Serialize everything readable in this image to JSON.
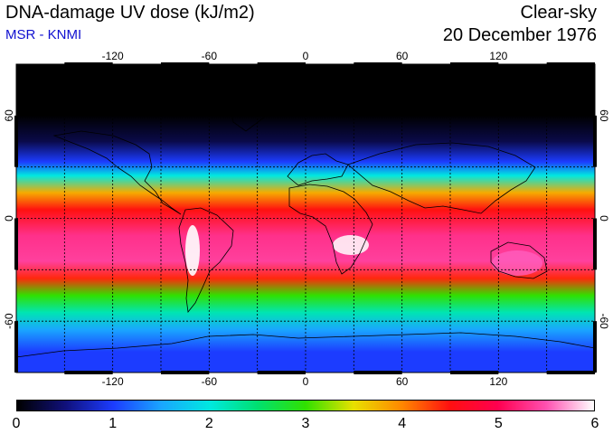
{
  "header": {
    "title": "DNA-damage UV dose (kJ/m2)",
    "subtitle": "MSR - KNMI",
    "condition": "Clear-sky",
    "date": "20 December 1976"
  },
  "map": {
    "projection": "equirectangular",
    "lon_range": [
      -180,
      180
    ],
    "lat_range": [
      -90,
      90
    ],
    "grid_spacing_deg": 30,
    "lon_ticks": [
      -120,
      -60,
      0,
      60,
      120
    ],
    "lon_tick_labels": [
      "-120",
      "-60",
      "0",
      "60",
      "120"
    ],
    "lat_ticks": [
      60,
      0,
      -60
    ],
    "lat_tick_labels": [
      "60",
      "0",
      "-60"
    ],
    "dose_bands": [
      {
        "lat": 90,
        "dose": 0.0
      },
      {
        "lat": 60,
        "dose": 0.0
      },
      {
        "lat": 45,
        "dose": 0.3
      },
      {
        "lat": 33,
        "dose": 1.0
      },
      {
        "lat": 25,
        "dose": 2.0
      },
      {
        "lat": 15,
        "dose": 3.8
      },
      {
        "lat": 5,
        "dose": 4.5
      },
      {
        "lat": -10,
        "dose": 5.3
      },
      {
        "lat": -25,
        "dose": 5.4
      },
      {
        "lat": -35,
        "dose": 4.4
      },
      {
        "lat": -45,
        "dose": 3.0
      },
      {
        "lat": -55,
        "dose": 2.2
      },
      {
        "lat": -65,
        "dose": 1.5
      },
      {
        "lat": -78,
        "dose": 1.0
      },
      {
        "lat": -90,
        "dose": 1.0
      }
    ]
  },
  "colorbar": {
    "min": 0,
    "max": 6,
    "labels": [
      "0",
      "1",
      "2",
      "3",
      "4",
      "5",
      "6"
    ],
    "stops": [
      {
        "value": 0.0,
        "color": "#000000"
      },
      {
        "value": 0.5,
        "color": "#10107a"
      },
      {
        "value": 1.0,
        "color": "#1c3cff"
      },
      {
        "value": 1.5,
        "color": "#1aa6ff"
      },
      {
        "value": 2.0,
        "color": "#00e8e0"
      },
      {
        "value": 2.5,
        "color": "#00e070"
      },
      {
        "value": 3.0,
        "color": "#30e000"
      },
      {
        "value": 3.5,
        "color": "#e8e000"
      },
      {
        "value": 4.0,
        "color": "#ff8800"
      },
      {
        "value": 4.5,
        "color": "#ff1010"
      },
      {
        "value": 5.0,
        "color": "#ff0050"
      },
      {
        "value": 5.5,
        "color": "#ff50b0"
      },
      {
        "value": 6.0,
        "color": "#ffffff"
      }
    ]
  }
}
